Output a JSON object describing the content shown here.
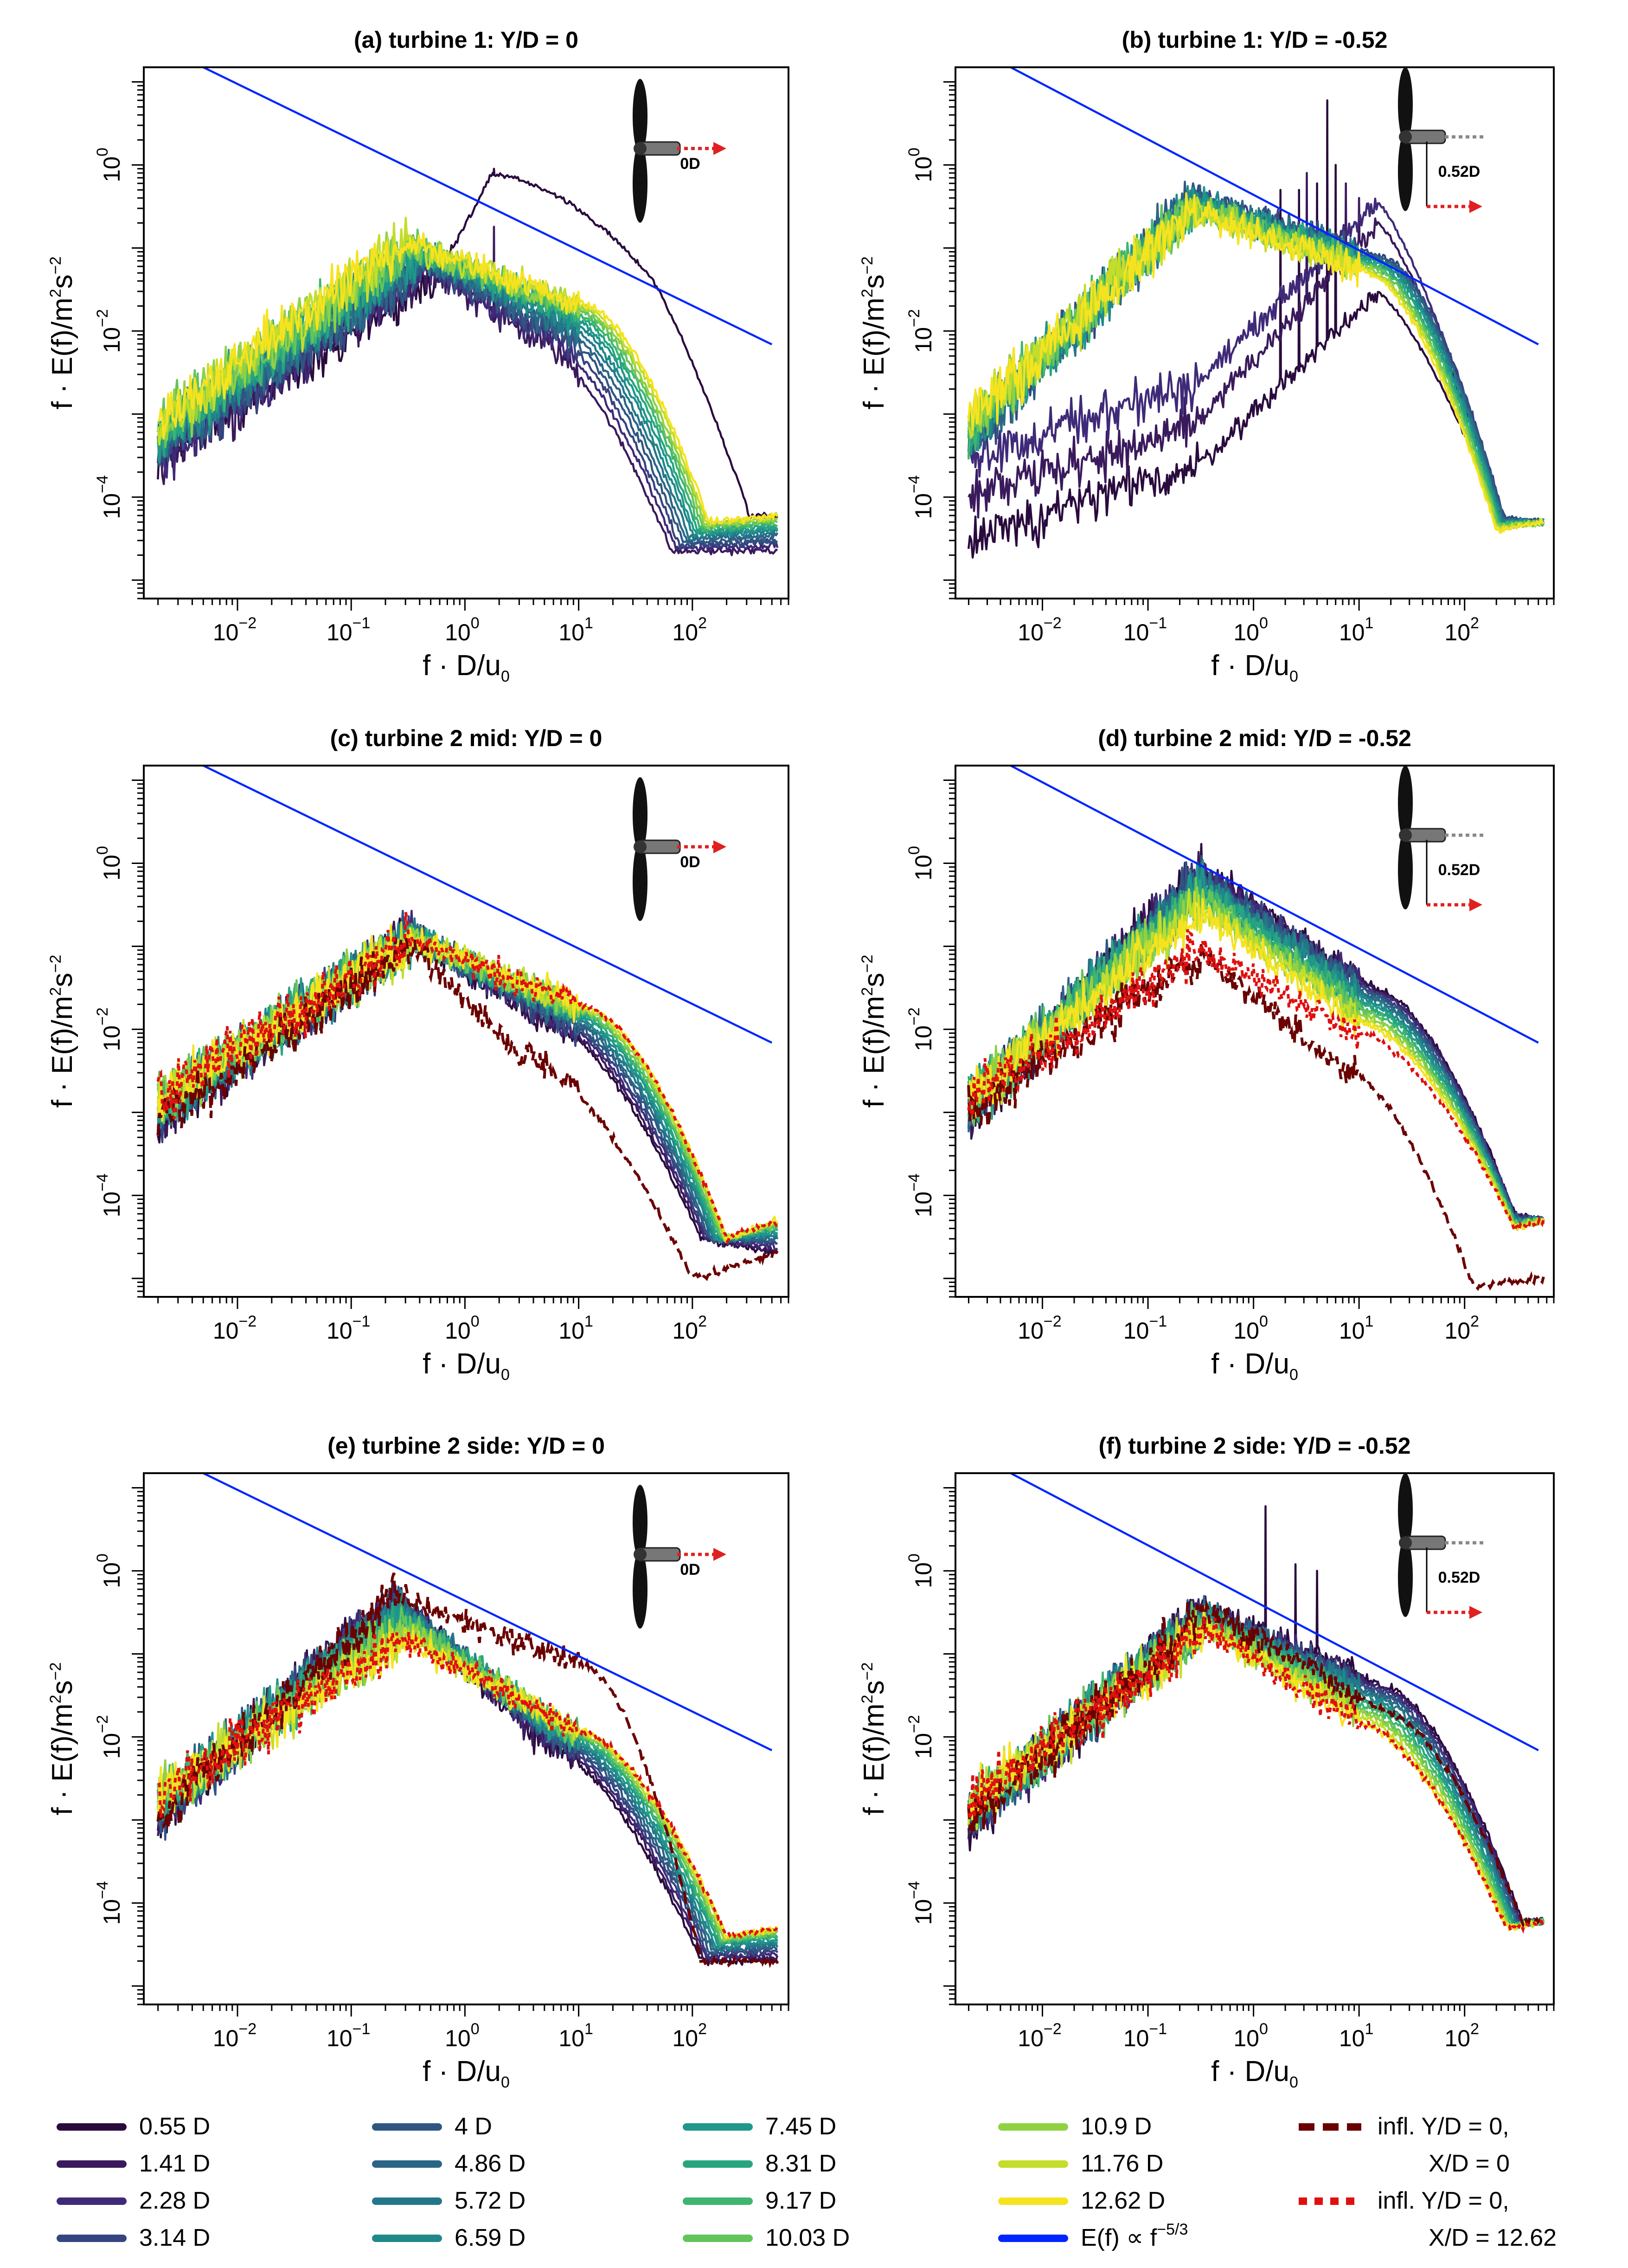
{
  "chart_data": {
    "type": "line",
    "scale": "log-log",
    "xlabel": "f · D/u0",
    "ylabel": "f · E(f)/m²s⁻²",
    "xlim": [
      0.0015,
      700
    ],
    "ylim": [
      6e-06,
      15
    ],
    "xticks": [
      "10^-2",
      "10^-1",
      "10^0",
      "10^1",
      "10^2"
    ],
    "yticks": [
      "10^-4",
      "10^-2",
      "10^0"
    ],
    "reference_line": {
      "label": "E(f) ∝ f^-5/3",
      "slope": -0.6667,
      "x": [
        0.005,
        500
      ],
      "y": [
        15,
        0.0069
      ],
      "color": "#0026ff"
    },
    "legend_labels": [
      "0.55 D",
      "1.41 D",
      "2.28 D",
      "3.14 D",
      "4 D",
      "4.86 D",
      "5.72 D",
      "6.59 D",
      "7.45 D",
      "8.31 D",
      "9.17 D",
      "10.03 D",
      "10.9 D",
      "11.76 D",
      "12.62 D"
    ],
    "legend_colors": [
      "#2a0b3e",
      "#3a1a5c",
      "#3f2a78",
      "#36447f",
      "#2f5682",
      "#2b6586",
      "#237789",
      "#20888a",
      "#1f978a",
      "#27a57f",
      "#3fb56f",
      "#63c45b",
      "#90d143",
      "#c4dd2a",
      "#f6e31f"
    ],
    "inflow_series": [
      {
        "label": "infl. Y/D = 0,",
        "label2": "X/D = 0",
        "color": "#6b0000",
        "style": "dashed"
      },
      {
        "label": "infl. Y/D = 0,",
        "label2": "X/D = 12.62",
        "color": "#e01010",
        "style": "dotted"
      }
    ],
    "legend_extra": {
      "label": "E(f) ∝ f",
      "exp": "−5/3",
      "color": "#0026ff"
    },
    "panels": [
      {
        "title": "(a) turbine 1: Y/D = 0",
        "icon": "0D",
        "offset": false,
        "peak": [
          0.1,
          0.02,
          0.5,
          0.12
        ],
        "cutoff": [
          12,
          30
        ],
        "hf": [
          3e-05,
          6e-05
        ],
        "spikes": [
          {
            "line": 0,
            "x": 1.8,
            "y": 0.9
          },
          {
            "line": 1,
            "x": 1.8,
            "y": 0.18
          }
        ],
        "special": "a",
        "inflow": false
      },
      {
        "title": "(b) turbine 1: Y/D = -0.52",
        "icon": "0.52D",
        "offset": true,
        "peak": [
          0.12,
          0.05,
          0.35,
          0.5
        ],
        "cutoff": [
          15,
          35
        ],
        "hf": [
          4e-05,
          6e-05
        ],
        "spikes": [
          {
            "line": 0,
            "x": 1.8,
            "y": 0.5
          },
          {
            "line": 0,
            "x": 2.7,
            "y": 0.5
          },
          {
            "line": 0,
            "x": 4,
            "y": 0.6
          },
          {
            "line": 0,
            "x": 5,
            "y": 6
          },
          {
            "line": 0,
            "x": 6,
            "y": 1
          },
          {
            "line": 1,
            "x": 3.2,
            "y": 0.8
          },
          {
            "line": 1,
            "x": 7.5,
            "y": 0.6
          },
          {
            "line": 1,
            "x": 10,
            "y": 0.4
          },
          {
            "line": 2,
            "x": 12,
            "y": 0.3
          }
        ],
        "special": "b",
        "inflow": false
      },
      {
        "title": "(c) turbine 2 mid: Y/D = 0",
        "icon": "0D",
        "offset": false,
        "peak": [
          0.1,
          0.13,
          0.35,
          0.16
        ],
        "cutoff": [
          8,
          25
        ],
        "hf": [
          2e-05,
          5e-05
        ],
        "spikes": [],
        "special": "c",
        "inflow": true
      },
      {
        "title": "(d) turbine 2 mid: Y/D = -0.52",
        "icon": "0.52D",
        "offset": true,
        "peak": [
          0.35,
          0.9,
          0.35,
          0.35
        ],
        "cutoff": [
          25,
          15
        ],
        "hf": [
          4e-05,
          4e-05
        ],
        "spikes": [],
        "special": "d",
        "inflow": true
      },
      {
        "title": "(e) turbine 2 side: Y/D = 0",
        "icon": "0D",
        "offset": false,
        "peak": [
          0.2,
          0.75,
          0.3,
          0.25
        ],
        "cutoff": [
          8,
          25
        ],
        "hf": [
          2e-05,
          5e-05
        ],
        "spikes": [],
        "special": "e",
        "inflow": true
      },
      {
        "title": "(f) turbine 2 side: Y/D = -0.52",
        "icon": "0.52D",
        "offset": true,
        "peak": [
          0.3,
          0.5,
          0.4,
          0.3
        ],
        "cutoff": [
          30,
          18
        ],
        "hf": [
          5e-05,
          6e-05
        ],
        "spikes": [
          {
            "line": 0,
            "x": 1.3,
            "y": 6
          },
          {
            "line": 0,
            "x": 2.5,
            "y": 1.2
          },
          {
            "line": 0,
            "x": 4,
            "y": 1
          }
        ],
        "special": "f",
        "inflow": true
      }
    ]
  }
}
